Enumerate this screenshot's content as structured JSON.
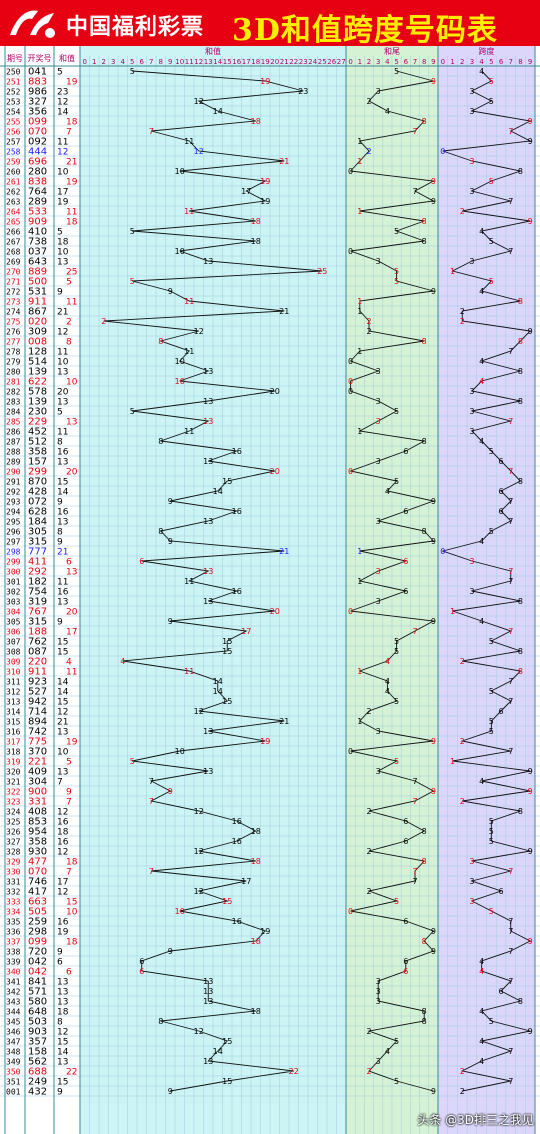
{
  "header": {
    "brand": "中国福利彩票",
    "title": "3D和值跨度号码表"
  },
  "watermark": "头条 @3D排三之我见",
  "columns": {
    "issue": "期号",
    "draw": "开奖号",
    "sum": "和值",
    "sum_chart": "和值",
    "tail_chart": "和尾",
    "span_chart": "跨度"
  },
  "colors": {
    "banner": "#e60012",
    "title": "#ffee00",
    "sum_bg": "#ccf4f4",
    "tail_bg": "#d6f2d4",
    "span_bg": "#dcd6fb",
    "hot": "#e60012",
    "cold": "#1a1aff",
    "text": "#000000"
  },
  "chart_data": {
    "type": "line",
    "sum_axis": [
      "0",
      "1",
      "2",
      "3",
      "4",
      "5",
      "6",
      "7",
      "8",
      "9",
      "10",
      "11",
      "12",
      "13",
      "14",
      "15",
      "16",
      "17",
      "18",
      "19",
      "20",
      "21",
      "22",
      "23",
      "24",
      "25",
      "26",
      "27"
    ],
    "digit_axis": [
      "0",
      "1",
      "2",
      "3",
      "4",
      "5",
      "6",
      "7",
      "8",
      "9"
    ],
    "rows": [
      [
        "250",
        "041",
        5,
        0
      ],
      [
        "251",
        "883",
        19,
        1
      ],
      [
        "252",
        "986",
        23,
        0
      ],
      [
        "253",
        "327",
        12,
        0
      ],
      [
        "254",
        "356",
        14,
        0
      ],
      [
        "255",
        "099",
        18,
        1
      ],
      [
        "256",
        "070",
        7,
        1
      ],
      [
        "257",
        "092",
        11,
        0
      ],
      [
        "258",
        "444",
        12,
        2
      ],
      [
        "259",
        "696",
        21,
        1
      ],
      [
        "260",
        "280",
        10,
        0
      ],
      [
        "261",
        "838",
        19,
        1
      ],
      [
        "262",
        "764",
        17,
        0
      ],
      [
        "263",
        "289",
        19,
        0
      ],
      [
        "264",
        "533",
        11,
        1
      ],
      [
        "265",
        "909",
        18,
        1
      ],
      [
        "266",
        "410",
        5,
        0
      ],
      [
        "267",
        "738",
        18,
        0
      ],
      [
        "268",
        "037",
        10,
        0
      ],
      [
        "269",
        "643",
        13,
        0
      ],
      [
        "270",
        "889",
        25,
        1
      ],
      [
        "271",
        "500",
        5,
        1
      ],
      [
        "272",
        "531",
        9,
        0
      ],
      [
        "273",
        "911",
        11,
        1
      ],
      [
        "274",
        "867",
        21,
        0
      ],
      [
        "275",
        "020",
        2,
        1
      ],
      [
        "276",
        "309",
        12,
        0
      ],
      [
        "277",
        "008",
        8,
        1
      ],
      [
        "278",
        "128",
        11,
        0
      ],
      [
        "279",
        "514",
        10,
        0
      ],
      [
        "280",
        "139",
        13,
        0
      ],
      [
        "281",
        "622",
        10,
        1
      ],
      [
        "282",
        "578",
        20,
        0
      ],
      [
        "283",
        "139",
        13,
        0
      ],
      [
        "284",
        "230",
        5,
        0
      ],
      [
        "285",
        "229",
        13,
        1
      ],
      [
        "286",
        "452",
        11,
        0
      ],
      [
        "287",
        "512",
        8,
        0
      ],
      [
        "288",
        "358",
        16,
        0
      ],
      [
        "289",
        "157",
        13,
        0
      ],
      [
        "290",
        "299",
        20,
        1
      ],
      [
        "291",
        "870",
        15,
        0
      ],
      [
        "292",
        "428",
        14,
        0
      ],
      [
        "293",
        "072",
        9,
        0
      ],
      [
        "294",
        "628",
        16,
        0
      ],
      [
        "295",
        "184",
        13,
        0
      ],
      [
        "296",
        "305",
        8,
        0
      ],
      [
        "297",
        "315",
        9,
        0
      ],
      [
        "298",
        "777",
        21,
        2
      ],
      [
        "299",
        "411",
        6,
        1
      ],
      [
        "300",
        "292",
        13,
        1
      ],
      [
        "301",
        "182",
        11,
        0
      ],
      [
        "302",
        "754",
        16,
        0
      ],
      [
        "303",
        "319",
        13,
        0
      ],
      [
        "304",
        "767",
        20,
        1
      ],
      [
        "305",
        "315",
        9,
        0
      ],
      [
        "306",
        "188",
        17,
        1
      ],
      [
        "307",
        "762",
        15,
        0
      ],
      [
        "308",
        "087",
        15,
        0
      ],
      [
        "309",
        "220",
        4,
        1
      ],
      [
        "310",
        "911",
        11,
        1
      ],
      [
        "311",
        "923",
        14,
        0
      ],
      [
        "312",
        "527",
        14,
        0
      ],
      [
        "313",
        "942",
        15,
        0
      ],
      [
        "314",
        "714",
        12,
        0
      ],
      [
        "315",
        "894",
        21,
        0
      ],
      [
        "316",
        "742",
        13,
        0
      ],
      [
        "317",
        "775",
        19,
        1
      ],
      [
        "318",
        "370",
        10,
        0
      ],
      [
        "319",
        "221",
        5,
        1
      ],
      [
        "320",
        "409",
        13,
        0
      ],
      [
        "321",
        "304",
        7,
        0
      ],
      [
        "322",
        "900",
        9,
        1
      ],
      [
        "323",
        "331",
        7,
        1
      ],
      [
        "324",
        "408",
        12,
        0
      ],
      [
        "325",
        "853",
        16,
        0
      ],
      [
        "326",
        "954",
        18,
        0
      ],
      [
        "327",
        "358",
        16,
        0
      ],
      [
        "328",
        "930",
        12,
        0
      ],
      [
        "329",
        "477",
        18,
        1
      ],
      [
        "330",
        "070",
        7,
        1
      ],
      [
        "331",
        "746",
        17,
        0
      ],
      [
        "332",
        "417",
        12,
        0
      ],
      [
        "333",
        "663",
        15,
        1
      ],
      [
        "334",
        "505",
        10,
        1
      ],
      [
        "335",
        "259",
        16,
        0
      ],
      [
        "336",
        "298",
        19,
        0
      ],
      [
        "337",
        "099",
        18,
        1
      ],
      [
        "338",
        "720",
        9,
        0
      ],
      [
        "339",
        "042",
        6,
        0
      ],
      [
        "340",
        "042",
        6,
        1
      ],
      [
        "341",
        "841",
        13,
        0
      ],
      [
        "342",
        "571",
        13,
        0
      ],
      [
        "343",
        "580",
        13,
        0
      ],
      [
        "344",
        "648",
        18,
        0
      ],
      [
        "345",
        "503",
        8,
        0
      ],
      [
        "346",
        "903",
        12,
        0
      ],
      [
        "347",
        "357",
        15,
        0
      ],
      [
        "348",
        "158",
        14,
        0
      ],
      [
        "349",
        "562",
        13,
        0
      ],
      [
        "350",
        "688",
        22,
        1
      ],
      [
        "351",
        "249",
        15,
        0
      ],
      [
        "001",
        "432",
        9,
        0
      ]
    ]
  }
}
